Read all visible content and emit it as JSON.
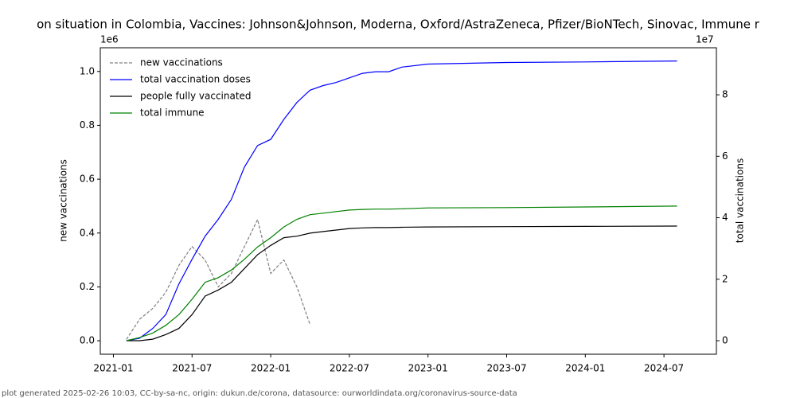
{
  "chart_data": {
    "type": "line",
    "title": "on situation in Colombia, Vaccines: Johnson&Johnson, Moderna, Oxford/AstraZeneca, Pfizer/BioNTech, Sinovac, Immune r",
    "y_label": "new vaccinations",
    "y2_label": "total vaccinations",
    "y_offset_label": "1e6",
    "y2_offset_label": "1e7",
    "footer": "plot generated 2025-02-26 10:03, CC-by-sa-nc, origin: dukun.de/corona, datasource: ourworldindata.org/coronavirus-source-data",
    "legend": "upper left",
    "x": [
      "2021-02",
      "2021-03",
      "2021-04",
      "2021-05",
      "2021-06",
      "2021-07",
      "2021-08",
      "2021-09",
      "2021-10",
      "2021-11",
      "2021-12",
      "2022-01",
      "2022-02",
      "2022-03",
      "2022-04",
      "2022-05",
      "2022-06",
      "2022-07",
      "2022-08",
      "2022-09",
      "2022-10",
      "2022-11",
      "2023-01",
      "2023-07",
      "2024-01",
      "2024-08"
    ],
    "xlim": [
      "2020-12",
      "2024-11"
    ],
    "xticks": [
      "2021-01",
      "2021-07",
      "2022-01",
      "2022-07",
      "2023-01",
      "2023-07",
      "2024-01",
      "2024-07"
    ],
    "ylim": [
      -50000,
      1088000
    ],
    "yticks": [
      {
        "value": 0,
        "label": "0.0"
      },
      {
        "value": 200000,
        "label": "0.2"
      },
      {
        "value": 400000,
        "label": "0.4"
      },
      {
        "value": 600000,
        "label": "0.6"
      },
      {
        "value": 800000,
        "label": "0.8"
      },
      {
        "value": 1000000,
        "label": "1.0"
      }
    ],
    "y2lim": [
      -4400000,
      95300000
    ],
    "y2ticks": [
      {
        "value": 0,
        "label": "0"
      },
      {
        "value": 20000000,
        "label": "2"
      },
      {
        "value": 40000000,
        "label": "4"
      },
      {
        "value": 60000000,
        "label": "6"
      },
      {
        "value": 80000000,
        "label": "8"
      }
    ],
    "series": [
      {
        "name": "new vaccinations",
        "color": "#808080",
        "linestyle": "dashed",
        "values": [
          5000,
          80000,
          120000,
          180000,
          280000,
          350000,
          300000,
          200000,
          250000,
          350000,
          450000,
          250000,
          300000,
          200000,
          60000,
          null,
          null,
          null,
          null,
          null,
          null,
          null,
          null,
          null,
          null,
          null
        ]
      },
      {
        "name": "total vaccination doses",
        "color": "#0000ff",
        "linestyle": "solid",
        "axis": "y2",
        "values": [
          0,
          800000,
          4000000,
          8500000,
          18500000,
          26500000,
          34000000,
          39500000,
          46000000,
          56500000,
          63500000,
          65500000,
          72000000,
          77500000,
          81500000,
          83000000,
          84000000,
          85500000,
          87000000,
          87500000,
          87500000,
          89000000,
          90000000,
          90500000,
          90700000,
          91000000
        ]
      },
      {
        "name": "people fully vaccinated",
        "color": "#000000",
        "linestyle": "solid",
        "axis": "y2",
        "values": [
          0,
          0,
          500000,
          2000000,
          4000000,
          8500000,
          14500000,
          16500000,
          19000000,
          23500000,
          28000000,
          31000000,
          33500000,
          34000000,
          35000000,
          35500000,
          36000000,
          36500000,
          36700000,
          36800000,
          36800000,
          36900000,
          37000000,
          37100000,
          37200000,
          37300000
        ]
      },
      {
        "name": "total immune",
        "color": "#008000",
        "linestyle": "solid",
        "axis": "y2",
        "values": [
          0,
          1000000,
          2500000,
          5000000,
          8500000,
          13500000,
          19000000,
          20500000,
          23000000,
          26500000,
          30500000,
          33500000,
          37000000,
          39500000,
          41000000,
          41500000,
          42000000,
          42500000,
          42700000,
          42800000,
          42800000,
          42900000,
          43200000,
          43300000,
          43500000,
          43800000
        ]
      }
    ]
  }
}
